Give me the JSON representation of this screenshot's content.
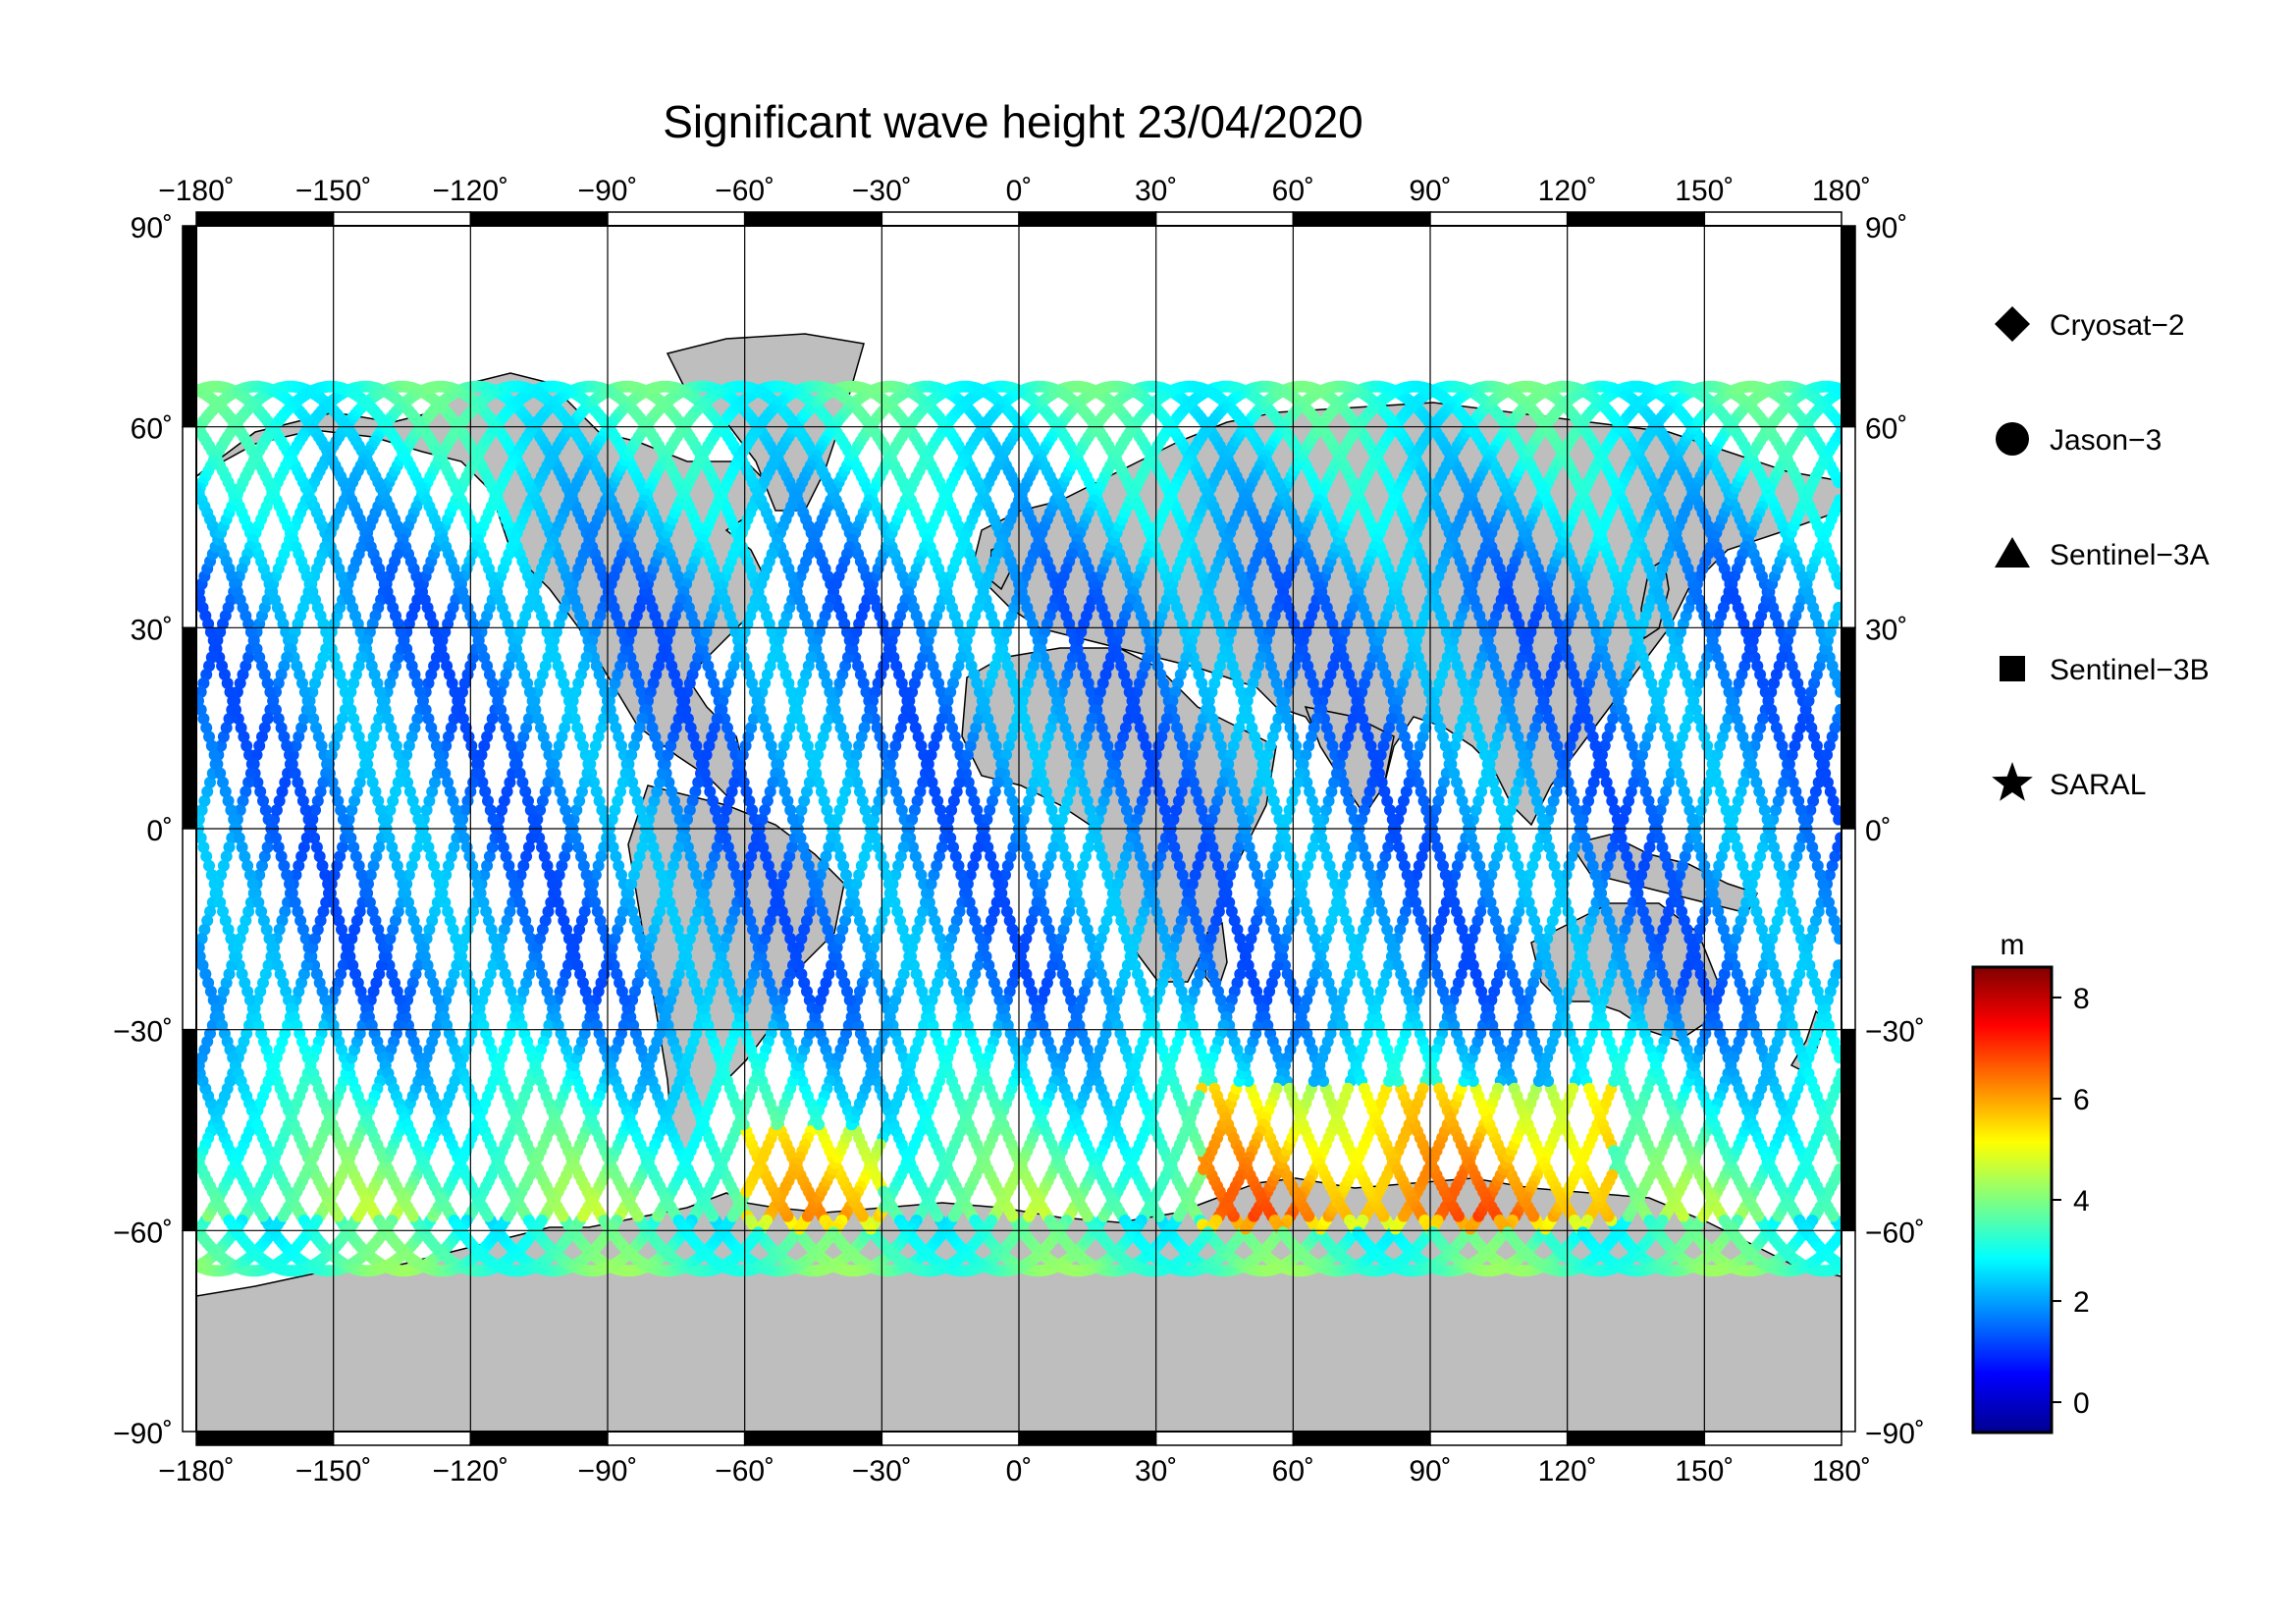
{
  "title": "Significant wave height 23/04/2020",
  "map": {
    "projection": "equirectangular",
    "lon_range": [
      -180,
      180
    ],
    "lat_range": [
      -90,
      90
    ],
    "lon_ticks": [
      "−180˚",
      "−150˚",
      "−120˚",
      "−90˚",
      "−60˚",
      "−30˚",
      "0˚",
      "30˚",
      "60˚",
      "90˚",
      "120˚",
      "150˚",
      "180˚"
    ],
    "lat_ticks_left": [
      "90˚",
      "60˚",
      "30˚",
      "0˚",
      "−30˚",
      "−60˚",
      "−90˚"
    ],
    "lat_ticks_right": [
      "90˚",
      "60˚",
      "30˚",
      "0˚",
      "−30˚",
      "−60˚",
      "−90˚"
    ],
    "grid": true,
    "land_color": "#bebebe",
    "ocean_color": "#ffffff"
  },
  "legend": {
    "placement": "right",
    "items": [
      {
        "label": "Cryosat−2",
        "symbol": "diamond"
      },
      {
        "label": "Jason−3",
        "symbol": "circle"
      },
      {
        "label": "Sentinel−3A",
        "symbol": "triangle"
      },
      {
        "label": "Sentinel−3B",
        "symbol": "square"
      },
      {
        "label": "SARAL",
        "symbol": "star"
      }
    ]
  },
  "colorbar": {
    "unit": "m",
    "range": [
      -0.6,
      8.6
    ],
    "ticks": [
      "8",
      "6",
      "4",
      "2",
      "0"
    ],
    "tick_values": [
      8,
      6,
      4,
      2,
      0
    ],
    "colors": [
      "#00008f",
      "#0000ff",
      "#0080ff",
      "#00ffff",
      "#80ff80",
      "#ffff00",
      "#ff8000",
      "#ff0000",
      "#800000"
    ]
  }
}
